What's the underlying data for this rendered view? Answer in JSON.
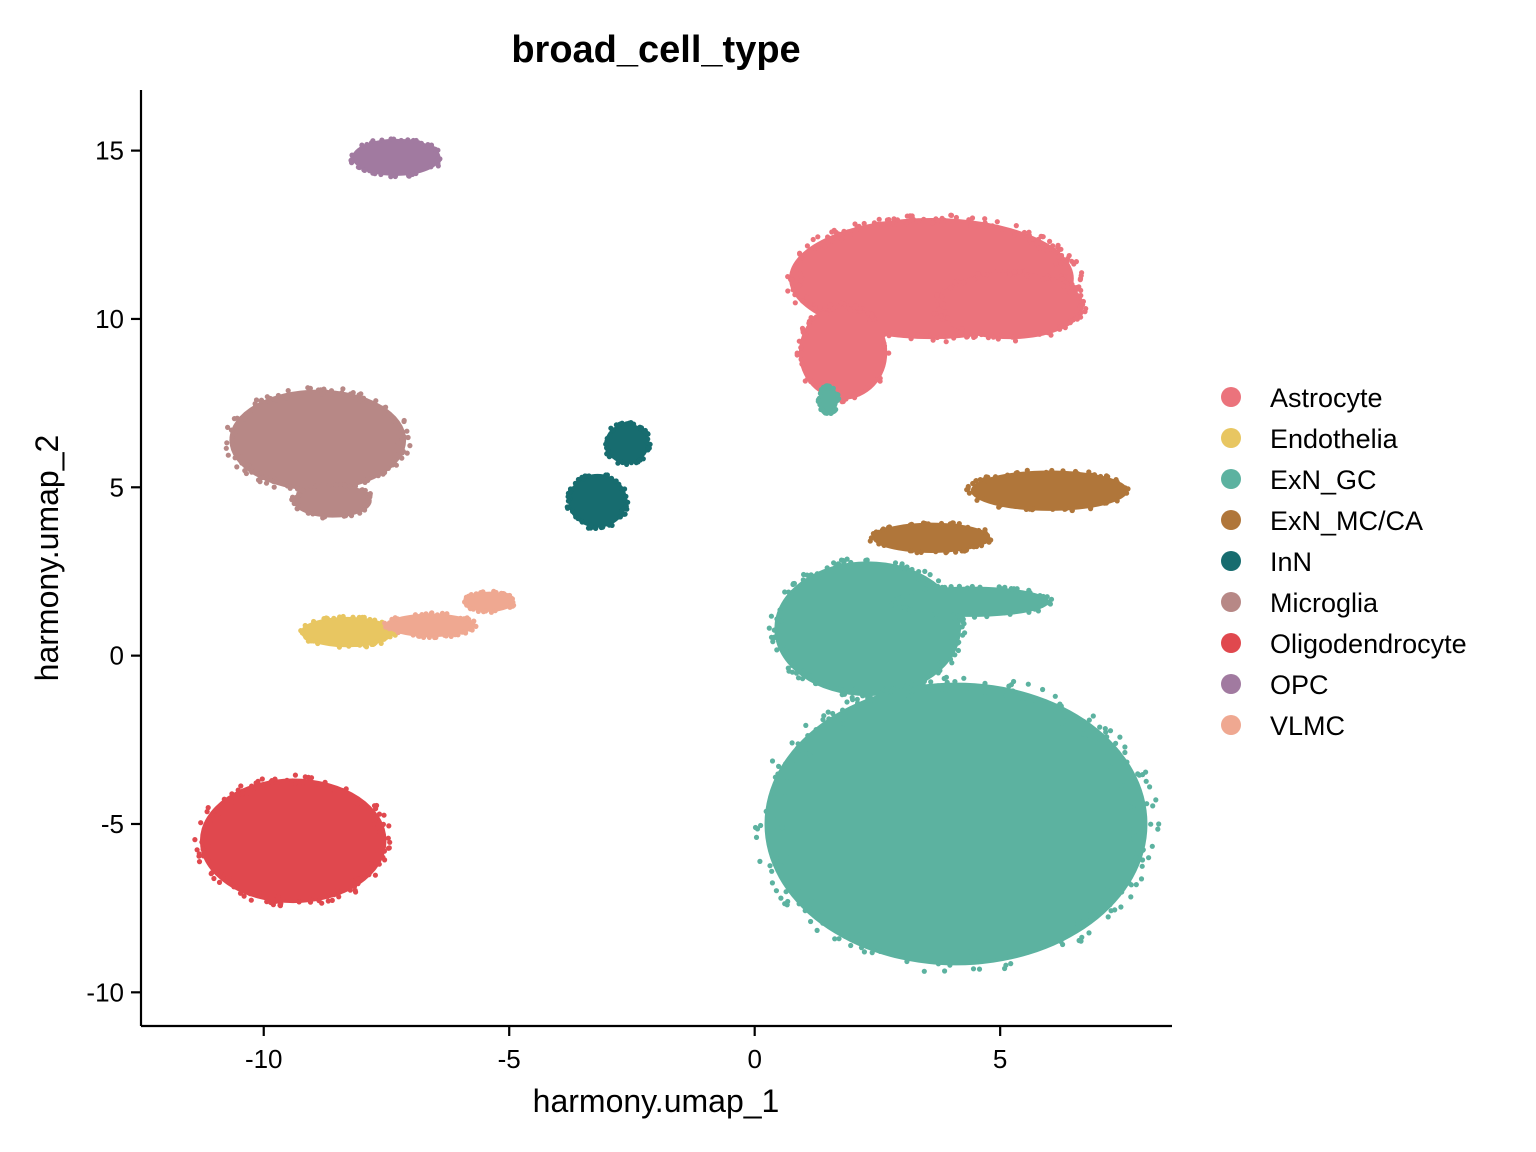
{
  "chart_data": {
    "type": "scatter",
    "title": "broad_cell_type",
    "xlabel": "harmony.umap_1",
    "ylabel": "harmony.umap_2",
    "xlim": [
      -12.5,
      8.5
    ],
    "ylim": [
      -11,
      16.8
    ],
    "xticks": [
      -10,
      -5,
      0,
      5
    ],
    "yticks": [
      -10,
      -5,
      0,
      5,
      10,
      15
    ],
    "grid": false,
    "legend_position": "right",
    "series": [
      {
        "name": "Astrocyte",
        "color": "#EB737C",
        "clusters": [
          {
            "cx": 3.6,
            "cy": 11.2,
            "rx": 2.9,
            "ry": 1.8
          },
          {
            "cx": 1.8,
            "cy": 9.0,
            "rx": 0.9,
            "ry": 1.4
          },
          {
            "cx": 5.2,
            "cy": 10.4,
            "rx": 1.5,
            "ry": 1.0
          }
        ]
      },
      {
        "name": "Endothelia",
        "color": "#E8C661",
        "clusters": [
          {
            "cx": -8.3,
            "cy": 0.7,
            "rx": 0.95,
            "ry": 0.45
          }
        ]
      },
      {
        "name": "ExN_GC",
        "color": "#5CB2A0",
        "clusters": [
          {
            "cx": 4.1,
            "cy": -5.0,
            "rx": 3.9,
            "ry": 4.2
          },
          {
            "cx": 2.3,
            "cy": 0.8,
            "rx": 1.9,
            "ry": 2.0
          },
          {
            "cx": 4.4,
            "cy": 1.6,
            "rx": 1.6,
            "ry": 0.45
          },
          {
            "cx": 1.5,
            "cy": 7.6,
            "rx": 0.2,
            "ry": 0.4
          }
        ]
      },
      {
        "name": "ExN_MC/CA",
        "color": "#B0763A",
        "clusters": [
          {
            "cx": 6.0,
            "cy": 4.9,
            "rx": 1.6,
            "ry": 0.6
          },
          {
            "cx": 3.6,
            "cy": 3.5,
            "rx": 1.2,
            "ry": 0.45
          }
        ]
      },
      {
        "name": "InN",
        "color": "#176C6F",
        "clusters": [
          {
            "cx": -3.2,
            "cy": 4.6,
            "rx": 0.6,
            "ry": 0.8
          },
          {
            "cx": -2.6,
            "cy": 6.3,
            "rx": 0.45,
            "ry": 0.6
          }
        ]
      },
      {
        "name": "Microglia",
        "color": "#B78886",
        "clusters": [
          {
            "cx": -8.9,
            "cy": 6.4,
            "rx": 1.8,
            "ry": 1.5
          },
          {
            "cx": -8.6,
            "cy": 4.6,
            "rx": 0.8,
            "ry": 0.5
          }
        ]
      },
      {
        "name": "Oligodendrocyte",
        "color": "#E0484E",
        "clusters": [
          {
            "cx": -9.4,
            "cy": -5.5,
            "rx": 1.9,
            "ry": 1.85
          }
        ]
      },
      {
        "name": "OPC",
        "color": "#A17AA0",
        "clusters": [
          {
            "cx": -7.3,
            "cy": 14.8,
            "rx": 0.9,
            "ry": 0.55
          }
        ]
      },
      {
        "name": "VLMC",
        "color": "#EFA891",
        "clusters": [
          {
            "cx": -6.6,
            "cy": 0.9,
            "rx": 0.9,
            "ry": 0.35
          },
          {
            "cx": -5.4,
            "cy": 1.6,
            "rx": 0.5,
            "ry": 0.3
          }
        ]
      }
    ]
  }
}
